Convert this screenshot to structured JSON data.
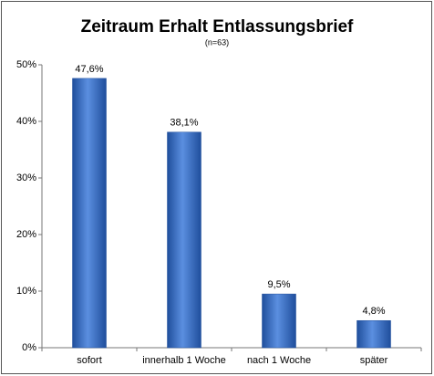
{
  "chart_data": {
    "type": "bar",
    "title": "Zeitraum Erhalt Entlassungsbrief",
    "subtitle": "(n=63)",
    "categories": [
      "sofort",
      "innerhalb 1 Woche",
      "nach 1 Woche",
      "später"
    ],
    "values": [
      47.6,
      38.1,
      9.5,
      4.8
    ],
    "value_labels": [
      "47,6%",
      "38,1%",
      "9,5%",
      "4,8%"
    ],
    "color": "#3a6fc4",
    "ylim": [
      0,
      50
    ],
    "yticks": [
      {
        "value": 0,
        "label": "0%"
      },
      {
        "value": 10,
        "label": "10%"
      },
      {
        "value": 20,
        "label": "20%"
      },
      {
        "value": 30,
        "label": "30%"
      },
      {
        "value": 40,
        "label": "40%"
      },
      {
        "value": 50,
        "label": "50%"
      }
    ],
    "grid": false
  }
}
